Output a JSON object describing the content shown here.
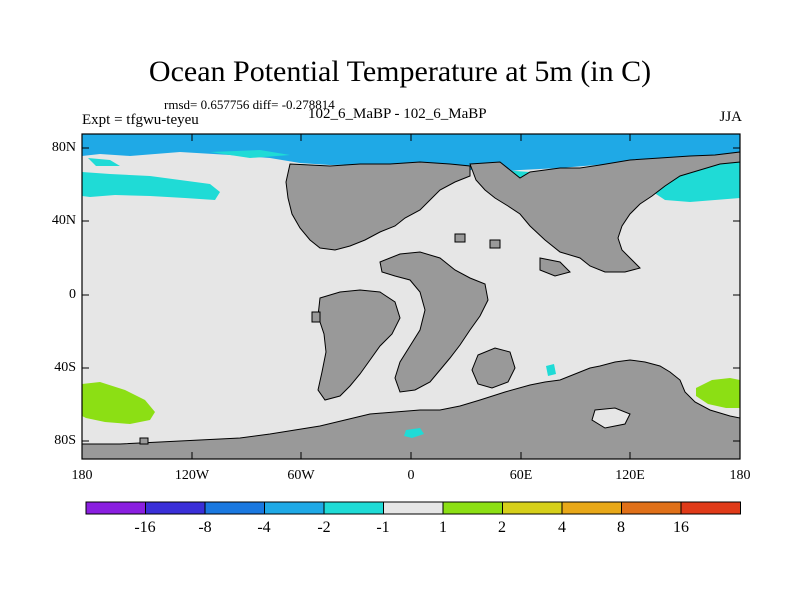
{
  "header": {
    "title": "Ocean Potential Temperature at 5m (in C)",
    "stats": "rmsd= 0.657756 diff= -0.278814",
    "experiment": "Expt = tfgwu-teyeu",
    "runs": "102_6_MaBP - 102_6_MaBP",
    "season": "JJA"
  },
  "map": {
    "lat_ticks": [
      "80N",
      "40N",
      "0",
      "40S",
      "80S"
    ],
    "lon_ticks": [
      "180",
      "120W",
      "60W",
      "0",
      "60E",
      "120E",
      "180"
    ],
    "land_color": "#999999",
    "near_zero_ocean_color": "#e6e6e6",
    "anomaly_regions": [
      {
        "name": "arctic-cooling",
        "level": "-4 to -2",
        "color": "#1fa9e6"
      },
      {
        "name": "north-pacific-cooling",
        "level": "-2 to -1",
        "color": "#1fdbd6"
      },
      {
        "name": "north-atlantic-cooling",
        "level": "-2 to -1",
        "color": "#1fdbd6"
      },
      {
        "name": "south-pacific-warming",
        "level": "1 to 2",
        "color": "#8cdf14"
      },
      {
        "name": "southwest-pacific-warming",
        "level": "1 to 2",
        "color": "#8cdf14"
      }
    ]
  },
  "colorbar": {
    "colors": [
      "#8a1fe0",
      "#3a2fd8",
      "#1a78e0",
      "#1fa9e6",
      "#1fdbd6",
      "#e6e6e6",
      "#8cdf14",
      "#d6cf1a",
      "#e8a818",
      "#e07018",
      "#e03a18"
    ],
    "labels": [
      "-16",
      "-8",
      "-4",
      "-2",
      "-1",
      "1",
      "2",
      "4",
      "8",
      "16"
    ]
  }
}
